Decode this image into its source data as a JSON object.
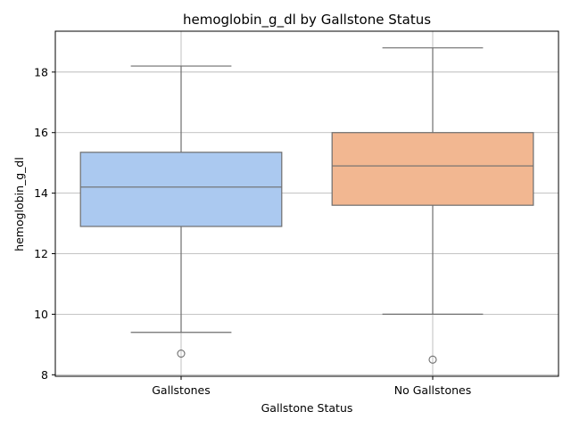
{
  "chart_data": {
    "type": "boxplot",
    "title": "hemoglobin_g_dl by Gallstone Status",
    "xlabel": "Gallstone Status",
    "ylabel": "hemoglobin_g_dl",
    "ylim": [
      7.95,
      19.35
    ],
    "yticks": [
      8,
      10,
      12,
      14,
      16,
      18
    ],
    "grid": true,
    "categories": [
      "Gallstones",
      "No Gallstones"
    ],
    "boxes": [
      {
        "category": "Gallstones",
        "whisker_low": 9.4,
        "q1": 12.9,
        "median": 14.2,
        "q3": 15.35,
        "whisker_high": 18.2,
        "outliers": [
          8.7
        ],
        "color": "#abc9f0"
      },
      {
        "category": "No Gallstones",
        "whisker_low": 10.0,
        "q1": 13.6,
        "median": 14.9,
        "q3": 16.0,
        "whisker_high": 18.8,
        "outliers": [
          8.5
        ],
        "color": "#f2b791"
      }
    ],
    "line_color": "#6e6e6e",
    "grid_color": "#b0b0b0"
  }
}
